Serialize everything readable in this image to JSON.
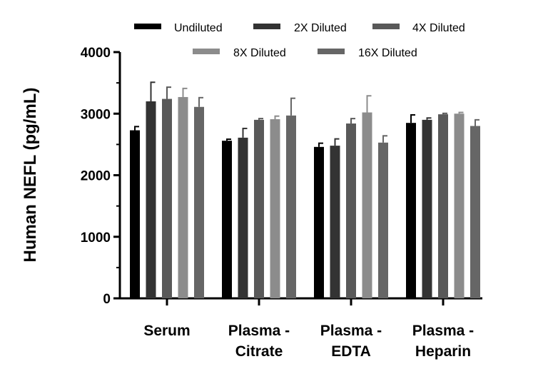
{
  "chart_data": {
    "type": "bar",
    "ylabel": "Human NEFL (pg/mL)",
    "ylim": [
      0,
      4000
    ],
    "yticks": [
      "0",
      "1000",
      "2000",
      "3000",
      "4000"
    ],
    "categories": [
      [
        "Serum"
      ],
      [
        "Plasma -",
        "Citrate"
      ],
      [
        "Plasma -",
        "EDTA"
      ],
      [
        "Plasma -",
        "Heparin"
      ]
    ],
    "series": [
      {
        "name": "Undiluted",
        "color": "#000000",
        "values": [
          2730,
          2560,
          2460,
          2850
        ],
        "errors": [
          60,
          25,
          60,
          130
        ]
      },
      {
        "name": "2X Diluted",
        "color": "#333333",
        "values": [
          3200,
          2610,
          2480,
          2900
        ],
        "errors": [
          310,
          150,
          110,
          30
        ]
      },
      {
        "name": "4X Diluted",
        "color": "#595959",
        "values": [
          3240,
          2900,
          2840,
          2990
        ],
        "errors": [
          190,
          20,
          80,
          15
        ]
      },
      {
        "name": "8X Diluted",
        "color": "#8c8c8c",
        "values": [
          3270,
          2910,
          3020,
          3000
        ],
        "errors": [
          140,
          50,
          270,
          20
        ]
      },
      {
        "name": "16X Diluted",
        "color": "#666666",
        "values": [
          3110,
          2970,
          2530,
          2800
        ],
        "errors": [
          150,
          280,
          110,
          100
        ]
      }
    ],
    "legend": {
      "position": "top"
    },
    "grid": false
  }
}
